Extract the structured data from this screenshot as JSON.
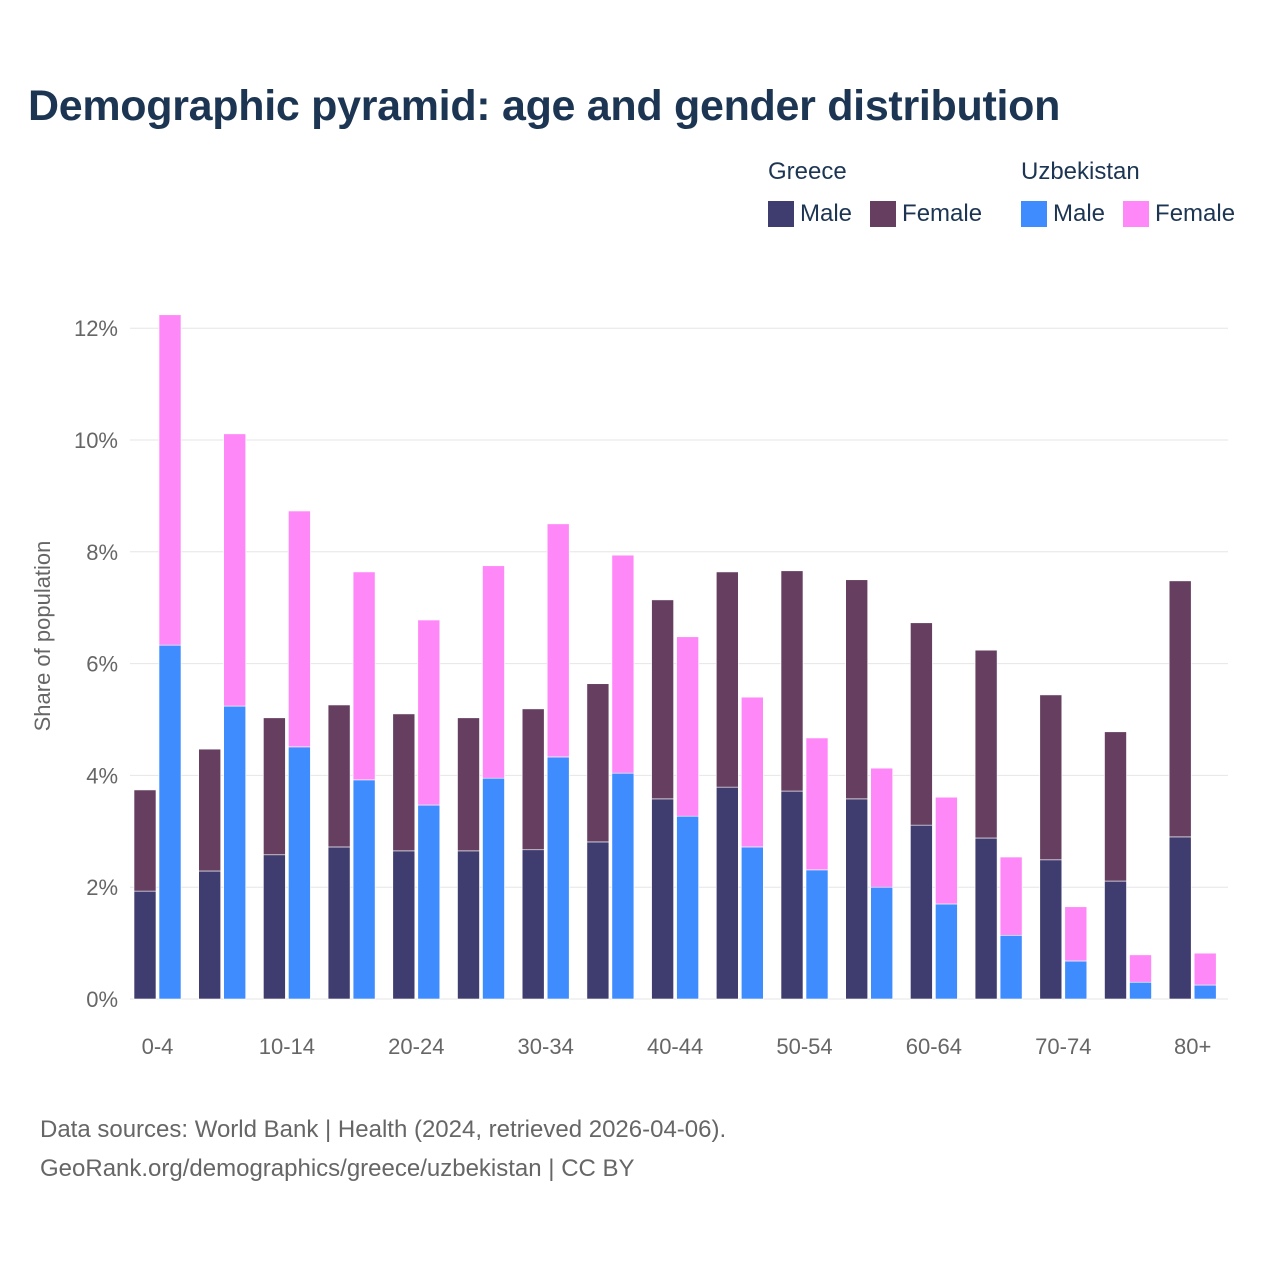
{
  "chart_data": {
    "type": "bar",
    "stacked": true,
    "grouped": true,
    "title": "Demographic pyramid: age and gender distribution",
    "xlabel": "",
    "ylabel": "Share of population",
    "ylim": [
      0,
      12.5
    ],
    "yticks": [
      0,
      2,
      4,
      6,
      8,
      10,
      12
    ],
    "ytick_labels": [
      "0%",
      "2%",
      "4%",
      "6%",
      "8%",
      "10%",
      "12%"
    ],
    "grid": true,
    "legend_position": "top-right",
    "categories": [
      "0-4",
      "5-9",
      "10-14",
      "15-19",
      "20-24",
      "25-29",
      "30-34",
      "35-39",
      "40-44",
      "45-49",
      "50-54",
      "55-59",
      "60-64",
      "65-69",
      "70-74",
      "75-79",
      "80+"
    ],
    "xtick_labels": [
      "0-4",
      "10-14",
      "20-24",
      "30-34",
      "40-44",
      "50-54",
      "60-64",
      "70-74",
      "80+"
    ],
    "groups": [
      {
        "name": "Greece",
        "series": [
          {
            "name": "Male",
            "color": "#3f3d6f",
            "values": [
              1.93,
              2.29,
              2.58,
              2.72,
              2.65,
              2.65,
              2.67,
              2.81,
              3.58,
              3.79,
              3.72,
              3.58,
              3.11,
              2.88,
              2.49,
              2.11,
              2.9
            ]
          },
          {
            "name": "Female",
            "color": "#663f60",
            "values": [
              1.81,
              2.18,
              2.45,
              2.54,
              2.45,
              2.38,
              2.52,
              2.83,
              3.56,
              3.85,
              3.94,
              3.92,
              3.62,
              3.36,
              2.95,
              2.67,
              4.58
            ]
          }
        ]
      },
      {
        "name": "Uzbekistan",
        "series": [
          {
            "name": "Male",
            "color": "#3f8cff",
            "values": [
              6.33,
              5.24,
              4.51,
              3.92,
              3.47,
              3.95,
              4.33,
              4.04,
              3.27,
              2.72,
              2.31,
              2.0,
              1.7,
              1.14,
              0.68,
              0.3,
              0.25
            ]
          },
          {
            "name": "Female",
            "color": "#ff88f8",
            "values": [
              5.91,
              4.87,
              4.22,
              3.72,
              3.31,
              3.8,
              4.17,
              3.9,
              3.21,
              2.68,
              2.36,
              2.13,
              1.91,
              1.4,
              0.97,
              0.49,
              0.57
            ]
          }
        ]
      }
    ]
  },
  "source_line1": "Data sources: World Bank | Health (2024, retrieved 2026-04-06).",
  "source_line2": "GeoRank.org/demographics/greece/uzbekistan | CC BY"
}
